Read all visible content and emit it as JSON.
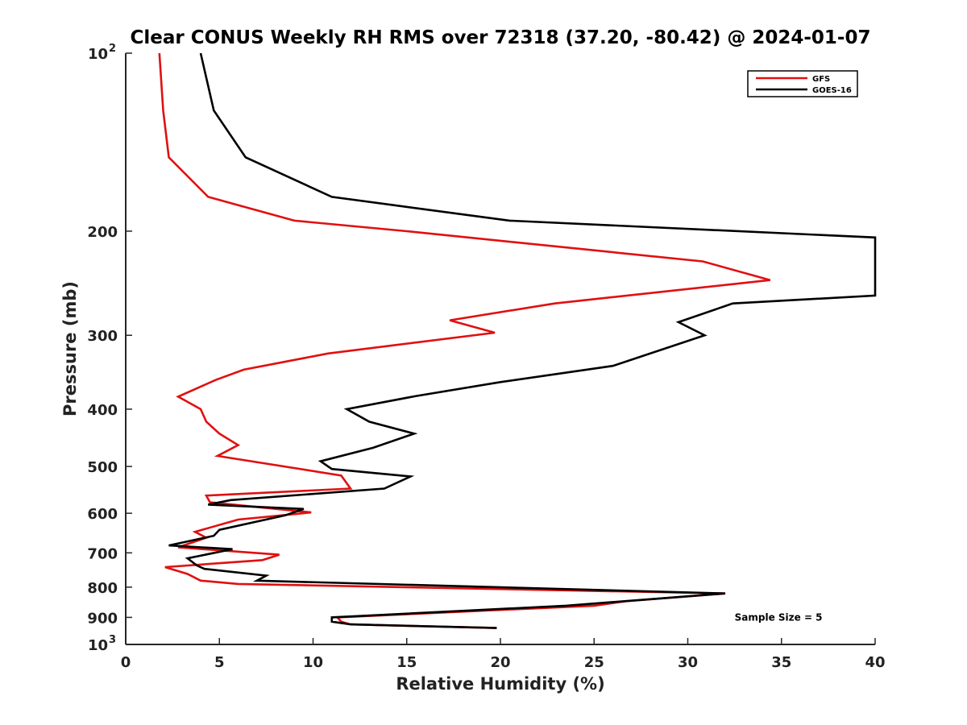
{
  "chart_data": {
    "type": "line",
    "title": "Clear CONUS Weekly RH RMS over 72318 (37.20, -80.42) @ 2024-01-07",
    "xlabel": "Relative Humidity (%)",
    "ylabel": "Pressure (mb)",
    "xlim": [
      0,
      40
    ],
    "ylim": [
      100,
      1000
    ],
    "y_scale": "log",
    "y_reversed": true,
    "grid": false,
    "legend_position": "top-right",
    "x_ticks": [
      {
        "value": 0,
        "label": "0"
      },
      {
        "value": 5,
        "label": "5"
      },
      {
        "value": 10,
        "label": "10"
      },
      {
        "value": 15,
        "label": "15"
      },
      {
        "value": 20,
        "label": "20"
      },
      {
        "value": 25,
        "label": "25"
      },
      {
        "value": 30,
        "label": "30"
      },
      {
        "value": 35,
        "label": "35"
      },
      {
        "value": 40,
        "label": "40"
      }
    ],
    "y_ticks": [
      {
        "value": 100,
        "base": "10",
        "exp": "2"
      },
      {
        "value": 200,
        "label": "200"
      },
      {
        "value": 300,
        "label": "300"
      },
      {
        "value": 400,
        "label": "400"
      },
      {
        "value": 500,
        "label": "500"
      },
      {
        "value": 600,
        "label": "600"
      },
      {
        "value": 700,
        "label": "700"
      },
      {
        "value": 800,
        "label": "800"
      },
      {
        "value": 900,
        "label": "900"
      },
      {
        "value": 1000,
        "base": "10",
        "exp": "3"
      }
    ],
    "series": [
      {
        "name": "GFS",
        "color": "#e01010",
        "points": [
          [
            1.8,
            100
          ],
          [
            2.0,
            125
          ],
          [
            2.3,
            150
          ],
          [
            4.4,
            175
          ],
          [
            9.0,
            192
          ],
          [
            15.0,
            200
          ],
          [
            30.8,
            225
          ],
          [
            34.4,
            242
          ],
          [
            22.9,
            265
          ],
          [
            17.3,
            283
          ],
          [
            19.7,
            297
          ],
          [
            10.8,
            322
          ],
          [
            6.3,
            343
          ],
          [
            4.8,
            357
          ],
          [
            2.8,
            381
          ],
          [
            4.0,
            400
          ],
          [
            4.3,
            420
          ],
          [
            5.0,
            440
          ],
          [
            6.0,
            460
          ],
          [
            4.9,
            480
          ],
          [
            11.5,
            518
          ],
          [
            12.0,
            545
          ],
          [
            4.3,
            560
          ],
          [
            4.5,
            575
          ],
          [
            9.9,
            598
          ],
          [
            6.0,
            615
          ],
          [
            3.7,
            645
          ],
          [
            4.3,
            660
          ],
          [
            2.8,
            685
          ],
          [
            8.2,
            705
          ],
          [
            7.3,
            720
          ],
          [
            2.1,
            740
          ],
          [
            3.3,
            760
          ],
          [
            4.0,
            780
          ],
          [
            6.0,
            790
          ],
          [
            32.0,
            820
          ],
          [
            26.7,
            845
          ],
          [
            25.0,
            860
          ],
          [
            11.3,
            900
          ],
          [
            11.5,
            915
          ],
          [
            12.0,
            925
          ],
          [
            19.8,
            938
          ]
        ]
      },
      {
        "name": "GOES-16",
        "color": "#000000",
        "points": [
          [
            4.0,
            100
          ],
          [
            4.7,
            125
          ],
          [
            6.4,
            150
          ],
          [
            11.0,
            175
          ],
          [
            20.5,
            192
          ],
          [
            40.0,
            205
          ],
          [
            40.0,
            257
          ],
          [
            32.4,
            265
          ],
          [
            29.5,
            285
          ],
          [
            30.9,
            300
          ],
          [
            26.0,
            338
          ],
          [
            20.0,
            360
          ],
          [
            15.5,
            380
          ],
          [
            11.8,
            400
          ],
          [
            13.0,
            420
          ],
          [
            15.4,
            440
          ],
          [
            13.2,
            465
          ],
          [
            10.4,
            490
          ],
          [
            11.0,
            505
          ],
          [
            15.2,
            520
          ],
          [
            13.8,
            545
          ],
          [
            5.6,
            570
          ],
          [
            4.4,
            580
          ],
          [
            9.5,
            590
          ],
          [
            8.5,
            605
          ],
          [
            5.0,
            640
          ],
          [
            4.7,
            655
          ],
          [
            2.3,
            680
          ],
          [
            5.7,
            690
          ],
          [
            3.3,
            715
          ],
          [
            3.8,
            735
          ],
          [
            4.2,
            745
          ],
          [
            7.5,
            765
          ],
          [
            7.0,
            780
          ],
          [
            32.0,
            820
          ],
          [
            23.5,
            860
          ],
          [
            11.0,
            900
          ],
          [
            11.0,
            915
          ],
          [
            12.0,
            925
          ],
          [
            19.8,
            938
          ]
        ]
      }
    ],
    "legend": [
      {
        "label": "GFS",
        "color": "#e01010"
      },
      {
        "label": "GOES-16",
        "color": "#000000"
      }
    ],
    "annotations": [
      {
        "text": "Sample Size = 5",
        "x": 32.5,
        "y": 900
      }
    ]
  }
}
